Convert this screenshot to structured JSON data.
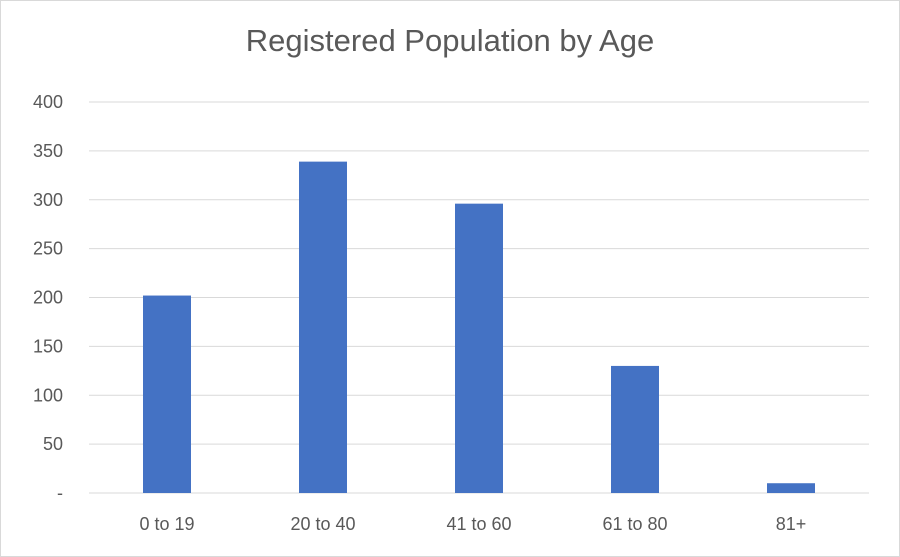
{
  "chart_data": {
    "type": "bar",
    "title": "Registered Population by Age",
    "categories": [
      "0 to 19",
      "20 to 40",
      "41 to 60",
      "61 to 80",
      "81+"
    ],
    "values": [
      202,
      339,
      296,
      130,
      10
    ],
    "ylim": [
      0,
      400
    ],
    "yticks": [
      0,
      50,
      100,
      150,
      200,
      250,
      300,
      350,
      400
    ],
    "ytick_labels": [
      "-",
      "50",
      "100",
      "150",
      "200",
      "250",
      "300",
      "350",
      "400"
    ],
    "grid": true,
    "legend": "none",
    "bar_color": "#4472C4"
  }
}
